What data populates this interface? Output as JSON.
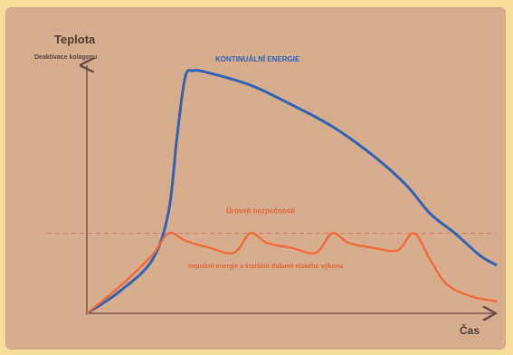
{
  "chart_data": {
    "type": "line",
    "title": "Teplota",
    "subtitle": "Deaktivace kolagenu",
    "xlabel": "Čas",
    "ylabel": "",
    "xlim": [
      0,
      100
    ],
    "ylim": [
      0,
      100
    ],
    "grid": false,
    "threshold": {
      "y": 33,
      "label": "Úroveň bezpečnosti"
    },
    "series": [
      {
        "name": "KONTINUÁLNÍ ENERGIE",
        "color": "#2f63b7",
        "x": [
          0,
          8,
          16,
          20,
          22,
          24,
          26,
          30,
          40,
          50,
          60,
          70,
          78,
          84,
          90,
          96,
          100
        ],
        "y": [
          0,
          9,
          22,
          42,
          72,
          97,
          100,
          99,
          94,
          86,
          77,
          65,
          53,
          41,
          33,
          24,
          20
        ]
      },
      {
        "name": "Impulzní energie s kratšími dobami nízkého výkonu",
        "color": "#f06a3a",
        "x": [
          0,
          8,
          16,
          20,
          24,
          30,
          36,
          40,
          44,
          50,
          56,
          60,
          64,
          70,
          76,
          80,
          84,
          88,
          94,
          100
        ],
        "y": [
          0,
          11,
          24,
          33,
          30,
          27,
          25,
          33,
          29,
          27,
          25,
          33,
          29,
          27,
          26,
          33,
          22,
          12,
          7,
          5
        ]
      }
    ]
  }
}
